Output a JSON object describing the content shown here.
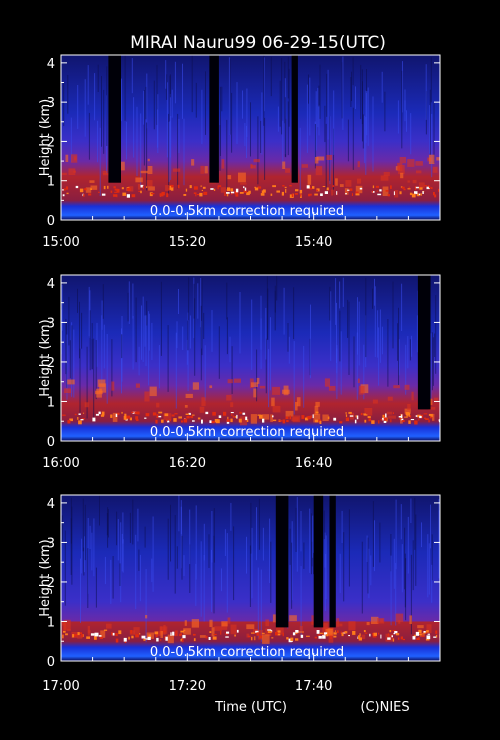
{
  "title": "MIRAI Nauru99 06-29-15(UTC)",
  "footer": {
    "xlabel": "Time (UTC)",
    "credit": "(C)NIES"
  },
  "colors": {
    "background": "#000000",
    "noise": "#1c2bd6",
    "aerosol": "#c02020",
    "cloud": "#ffffff",
    "text": "#ffffff"
  },
  "chart_data": [
    {
      "type": "heatmap",
      "ylabel": "Height (km)",
      "yticks": [
        "0",
        "1",
        "2",
        "3",
        "4"
      ],
      "ylim": [
        0,
        4.2
      ],
      "xlim_minutes": [
        0,
        60
      ],
      "xticks": [
        {
          "label": "15:00",
          "min": 0
        },
        {
          "label": "15:20",
          "min": 20
        },
        {
          "label": "15:40",
          "min": 40
        }
      ],
      "annotation": "0.0-0.5km correction required",
      "blank_intervals_min": [
        [
          7.5,
          9.5
        ],
        [
          23.5,
          25
        ],
        [
          36.5,
          37.5
        ]
      ],
      "aerosol_top_km": 1.5,
      "cloud_base_km": 0.75
    },
    {
      "type": "heatmap",
      "ylabel": "Height (km)",
      "yticks": [
        "0",
        "1",
        "2",
        "3",
        "4"
      ],
      "ylim": [
        0,
        4.2
      ],
      "xlim_minutes": [
        0,
        60
      ],
      "xticks": [
        {
          "label": "16:00",
          "min": 0
        },
        {
          "label": "16:20",
          "min": 20
        },
        {
          "label": "16:40",
          "min": 40
        }
      ],
      "annotation": "0.0-0.5km correction required",
      "blank_intervals_min": [
        [
          56.5,
          58.5
        ]
      ],
      "aerosol_top_km": 1.4,
      "cloud_base_km": 0.6
    },
    {
      "type": "heatmap",
      "ylabel": "Height (km)",
      "yticks": [
        "0",
        "1",
        "2",
        "3",
        "4"
      ],
      "ylim": [
        0,
        4.2
      ],
      "xlim_minutes": [
        0,
        60
      ],
      "xticks": [
        {
          "label": "17:00",
          "min": 0
        },
        {
          "label": "17:20",
          "min": 20
        },
        {
          "label": "17:40",
          "min": 40
        }
      ],
      "annotation": "0.0-0.5km correction required",
      "blank_intervals_min": [
        [
          34,
          36
        ],
        [
          40,
          41.5
        ],
        [
          42.5,
          43.5
        ]
      ],
      "aerosol_top_km": 1.0,
      "cloud_base_km": 0.65
    }
  ]
}
